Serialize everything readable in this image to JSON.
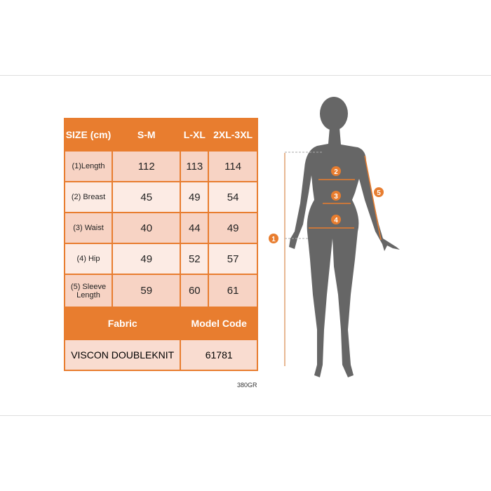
{
  "size_chart": {
    "header": {
      "size_label": "SIZE (cm)",
      "columns": [
        "S-M",
        "L-XL",
        "2XL-3XL"
      ]
    },
    "rows": [
      {
        "label": "(1)Length",
        "values": [
          "112",
          "113",
          "114"
        ]
      },
      {
        "label": "(2) Breast",
        "values": [
          "45",
          "49",
          "54"
        ]
      },
      {
        "label": "(3) Waist",
        "values": [
          "40",
          "44",
          "49"
        ]
      },
      {
        "label": "(4) Hip",
        "values": [
          "49",
          "52",
          "57"
        ]
      },
      {
        "label": "(5) Sleeve Length",
        "values": [
          "59",
          "60",
          "61"
        ]
      }
    ],
    "footer_header": {
      "fabric": "Fabric",
      "model_code": "Model Code"
    },
    "footer_values": {
      "fabric": "VISCON DOUBLEKNIT",
      "model_code": "61781"
    },
    "note": "380GR"
  },
  "figure": {
    "markers": [
      "1",
      "2",
      "3",
      "4",
      "5"
    ],
    "accent_color": "#e87d2f",
    "silhouette_color": "#666666"
  }
}
